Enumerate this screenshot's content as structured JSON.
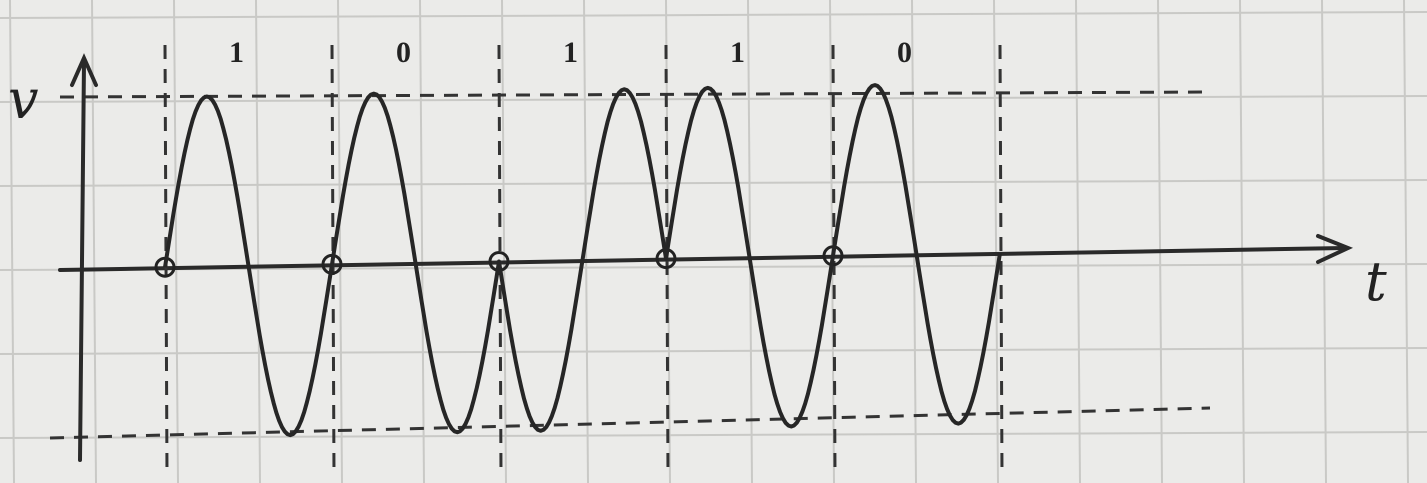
{
  "axes": {
    "y_label": "v",
    "x_label": "t"
  },
  "bits": [
    1,
    0,
    1,
    1,
    0
  ]
}
